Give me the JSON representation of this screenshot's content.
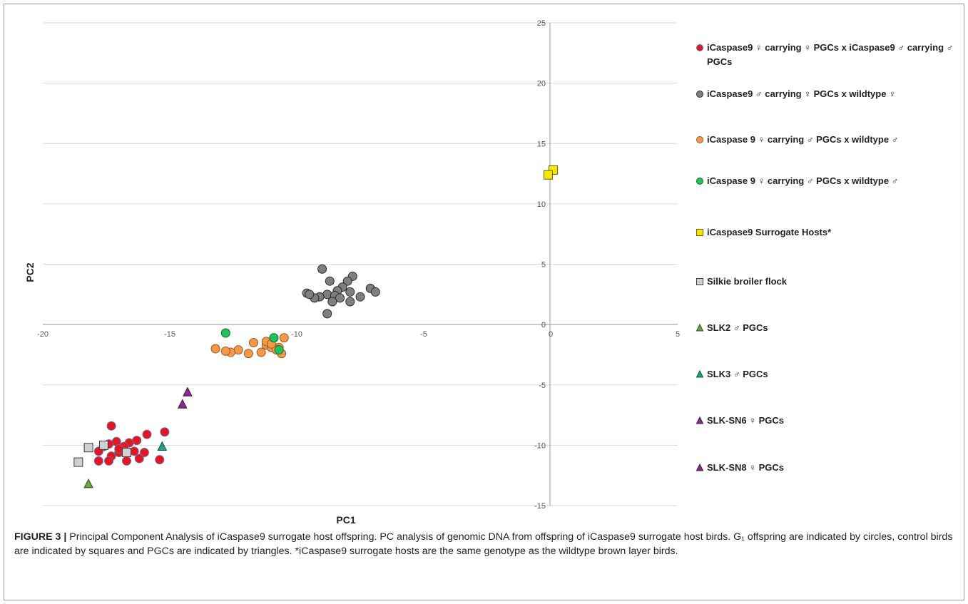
{
  "figure": {
    "caption_label": "FIGURE 3 |",
    "caption_text": " Principal Component Analysis of iCaspase9 surrogate host offspring. PC analysis of genomic DNA from offspring of iCaspase9 surrogate host birds. G₁ offspring are indicated by circles, control birds are indicated by squares and PGCs are indicated by triangles. *iCaspase9 surrogate hosts are the same genotype as the wildtype brown layer birds."
  },
  "chart_data": {
    "type": "scatter",
    "xlabel": "PC1",
    "ylabel": "PC2",
    "xlim": [
      -20,
      5
    ],
    "ylim": [
      -15,
      25
    ],
    "x_ticks": [
      -20,
      -15,
      -10,
      -5,
      0,
      5
    ],
    "y_ticks": [
      -15,
      -10,
      -5,
      0,
      5,
      10,
      15,
      20,
      25
    ],
    "x_tick_labels": [
      "-20",
      "-15",
      "-10",
      "-5",
      "0",
      "5"
    ],
    "y_tick_labels": [
      "-15",
      "-10",
      "-5",
      "0",
      "5",
      "10",
      "15",
      "20",
      "25"
    ],
    "grid": "horizontal",
    "legend_position": "right",
    "series": [
      {
        "name": "iCaspase9 ♀ carrying ♀ PGCs x iCaspase9 ♂ carrying ♂ PGCs",
        "marker": "circle",
        "color": "#e8141e",
        "edge": "#5a6fb4",
        "points": [
          [
            -17.3,
            -8.4
          ],
          [
            -16.3,
            -9.6
          ],
          [
            -16.6,
            -9.8
          ],
          [
            -17.1,
            -9.7
          ],
          [
            -17.4,
            -9.9
          ],
          [
            -17.6,
            -10.1
          ],
          [
            -15.9,
            -9.1
          ],
          [
            -15.2,
            -8.9
          ],
          [
            -16.4,
            -10.5
          ],
          [
            -16.0,
            -10.6
          ],
          [
            -17.8,
            -10.5
          ],
          [
            -17.0,
            -10.6
          ],
          [
            -17.3,
            -10.9
          ],
          [
            -16.2,
            -11.1
          ],
          [
            -16.7,
            -11.3
          ],
          [
            -17.4,
            -11.3
          ],
          [
            -17.8,
            -11.3
          ],
          [
            -15.4,
            -11.2
          ],
          [
            -16.8,
            -10.1
          ],
          [
            -17.0,
            -10.3
          ]
        ]
      },
      {
        "name": "iCaspase9 ♂ carrying ♀ PGCs x wildtype ♀",
        "marker": "circle",
        "color": "#7f7f7f",
        "edge": "#2b2b2b",
        "points": [
          [
            -9.0,
            4.6
          ],
          [
            -8.7,
            3.6
          ],
          [
            -7.8,
            4.0
          ],
          [
            -8.0,
            3.6
          ],
          [
            -8.2,
            3.1
          ],
          [
            -8.4,
            2.8
          ],
          [
            -7.9,
            2.7
          ],
          [
            -7.5,
            2.3
          ],
          [
            -7.1,
            3.0
          ],
          [
            -6.9,
            2.7
          ],
          [
            -8.8,
            2.5
          ],
          [
            -8.5,
            2.4
          ],
          [
            -9.1,
            2.3
          ],
          [
            -9.3,
            2.2
          ],
          [
            -9.6,
            2.6
          ],
          [
            -9.5,
            2.5
          ],
          [
            -8.3,
            2.2
          ],
          [
            -8.6,
            1.9
          ],
          [
            -7.9,
            1.9
          ],
          [
            -8.8,
            0.9
          ]
        ]
      },
      {
        "name": "iCaspase 9 ♀ carrying ♂ PGCs x wildtype ♂",
        "marker": "circle",
        "color": "#f39a4a",
        "edge": "#9c5a1e",
        "points": [
          [
            -11.7,
            -1.5
          ],
          [
            -11.2,
            -1.7
          ],
          [
            -11.0,
            -1.9
          ],
          [
            -10.7,
            -1.9
          ],
          [
            -10.5,
            -1.1
          ],
          [
            -12.3,
            -2.1
          ],
          [
            -11.9,
            -2.4
          ],
          [
            -12.6,
            -2.3
          ],
          [
            -11.4,
            -2.3
          ],
          [
            -10.8,
            -2.1
          ],
          [
            -10.6,
            -2.4
          ],
          [
            -12.8,
            -2.2
          ],
          [
            -13.2,
            -2.0
          ],
          [
            -11.2,
            -1.4
          ],
          [
            -11.0,
            -1.6
          ]
        ]
      },
      {
        "name": "iCaspase 9 ♀ carrying ♂ PGCs x wildtype ♂",
        "marker": "circle",
        "color": "#22c15a",
        "edge": "#146b33",
        "points": [
          [
            -12.8,
            -0.7
          ],
          [
            -10.9,
            -1.1
          ],
          [
            -10.7,
            -2.1
          ]
        ]
      },
      {
        "name": "iCaspase9 Surrogate Hosts*",
        "marker": "square",
        "color": "#f5e800",
        "edge": "#6b6400",
        "points": [
          [
            0.1,
            12.8
          ],
          [
            -0.1,
            12.4
          ]
        ]
      },
      {
        "name": "Silkie broiler flock",
        "marker": "square",
        "color": "#d0d0d0",
        "edge": "#3b3b3b",
        "points": [
          [
            -18.2,
            -10.2
          ],
          [
            -17.6,
            -10.0
          ],
          [
            -16.7,
            -10.6
          ],
          [
            -18.6,
            -11.4
          ]
        ]
      },
      {
        "name": "SLK2 ♂ PGCs",
        "marker": "triangle",
        "color": "#6ea341",
        "edge": "#2f4d1c",
        "points": [
          [
            -18.2,
            -13.2
          ]
        ]
      },
      {
        "name": "SLK3 ♂ PGCs",
        "marker": "triangle",
        "color": "#1f9e82",
        "edge": "#0f4f41",
        "points": [
          [
            -15.3,
            -10.1
          ]
        ]
      },
      {
        "name": "SLK-SN6 ♀ PGCs",
        "marker": "triangle",
        "color": "#8a2a8a",
        "edge": "#401340",
        "points": [
          [
            -14.3,
            -5.6
          ]
        ]
      },
      {
        "name": "SLK-SN8 ♀ PGCs",
        "marker": "triangle",
        "color": "#8a2a8a",
        "edge": "#401340",
        "points": [
          [
            -14.5,
            -6.6
          ]
        ]
      }
    ],
    "legend": [
      {
        "marker": "circle",
        "color": "#e8141e",
        "edge": "#5a6fb4",
        "label": "iCaspase9 ♀ carrying ♀ PGCs x iCaspase9 ♂ carrying ♂ PGCs"
      },
      {
        "marker": "circle",
        "color": "#7f7f7f",
        "edge": "#2b2b2b",
        "label": "iCaspase9 ♂ carrying ♀ PGCs x wildtype ♀"
      },
      {
        "marker": "circle",
        "color": "#f39a4a",
        "edge": "#9c5a1e",
        "label": "iCaspase 9 ♀ carrying ♂ PGCs x wildtype ♂"
      },
      {
        "marker": "circle",
        "color": "#22c15a",
        "edge": "#146b33",
        "label": "iCaspase 9 ♀ carrying ♂ PGCs x wildtype ♂"
      },
      {
        "marker": "square",
        "color": "#f5e800",
        "edge": "#6b6400",
        "label": "iCaspase9 Surrogate Hosts*"
      },
      {
        "marker": "square",
        "color": "#d0d0d0",
        "edge": "#3b3b3b",
        "label": "Silkie broiler flock"
      },
      {
        "marker": "triangle",
        "color": "#6ea341",
        "edge": "#2f4d1c",
        "label": "SLK2 ♂ PGCs"
      },
      {
        "marker": "triangle",
        "color": "#1f9e82",
        "edge": "#0f4f41",
        "label": "SLK3 ♂ PGCs"
      },
      {
        "marker": "triangle",
        "color": "#8a2a8a",
        "edge": "#401340",
        "label": "SLK-SN6 ♀ PGCs"
      },
      {
        "marker": "triangle",
        "color": "#8a2a8a",
        "edge": "#401340",
        "label": "SLK-SN8 ♀ PGCs"
      }
    ]
  }
}
